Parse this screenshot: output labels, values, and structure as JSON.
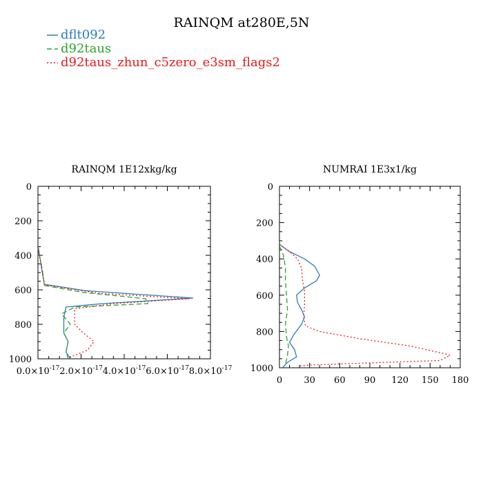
{
  "figure_title": "RAINQM at280E,5N",
  "colors": {
    "dflt092": "#2b7bb9",
    "d92taus": "#2ca02c",
    "d92taus_zhun_c5zero_e3sm_flags2": "#e31a1c"
  },
  "legend": [
    {
      "name": "dflt092",
      "color": "#2b7bb9",
      "dash": "solid"
    },
    {
      "name": "d92taus",
      "color": "#2ca02c",
      "dash": "dashed"
    },
    {
      "name": "d92taus_zhun_c5zero_e3sm_flags2",
      "color": "#e31a1c",
      "dash": "dotted"
    }
  ],
  "chart_data": [
    {
      "type": "line",
      "title": "RAINQM  1E12xkg/kg",
      "xlim": [
        0,
        8e-17
      ],
      "ylim": [
        0,
        1000
      ],
      "y_inverted": true,
      "x_ticks": [
        0,
        2e-17,
        4e-17,
        6e-17,
        8e-17
      ],
      "x_tick_labels": [
        {
          "base": "0.0×10",
          "exp": "-17"
        },
        {
          "base": "2.0×10",
          "exp": "-17"
        },
        {
          "base": "4.0×10",
          "exp": "-17"
        },
        {
          "base": "6.0×10",
          "exp": "-17"
        },
        {
          "base": "8.0×10",
          "exp": "-17"
        }
      ],
      "y_ticks": [
        0,
        200,
        400,
        600,
        800,
        1000
      ],
      "y_tick_labels": [
        "0",
        "200",
        "400",
        "600",
        "800",
        "1000"
      ],
      "series": [
        {
          "name": "dflt092",
          "color": "#2b7bb9",
          "dash": "solid",
          "points": [
            [
              0,
              340
            ],
            [
              1e-18,
              420
            ],
            [
              2e-18,
              500
            ],
            [
              3e-18,
              568
            ],
            [
              2.2e-17,
              605
            ],
            [
              7.2e-17,
              648
            ],
            [
              3e-17,
              680
            ],
            [
              1.3e-17,
              700
            ],
            [
              1.2e-17,
              760
            ],
            [
              1.2e-17,
              850
            ],
            [
              1.4e-17,
              900
            ],
            [
              1.3e-17,
              960
            ],
            [
              1.5e-17,
              1000
            ]
          ]
        },
        {
          "name": "d92taus",
          "color": "#2ca02c",
          "dash": "dashed",
          "points": [
            [
              0,
              360
            ],
            [
              2e-18,
              480
            ],
            [
              3e-18,
              575
            ],
            [
              2.1e-17,
              615
            ],
            [
              5e-17,
              652
            ],
            [
              5.1e-17,
              680
            ],
            [
              1.7e-17,
              700
            ],
            [
              1.1e-17,
              740
            ],
            [
              1.5e-17,
              800
            ],
            [
              1.2e-17,
              850
            ],
            [
              1.4e-17,
              900
            ],
            [
              1.3e-17,
              960
            ],
            [
              1.4e-17,
              1000
            ]
          ]
        },
        {
          "name": "d92taus_zhun_c5zero_e3sm_flags2",
          "color": "#e31a1c",
          "dash": "dotted",
          "points": [
            [
              0,
              350
            ],
            [
              2e-18,
              490
            ],
            [
              3e-18,
              572
            ],
            [
              2.8e-17,
              620
            ],
            [
              7e-17,
              652
            ],
            [
              3.5e-17,
              680
            ],
            [
              1.7e-17,
              710
            ],
            [
              1.7e-17,
              800
            ],
            [
              2.1e-17,
              850
            ],
            [
              2.6e-17,
              900
            ],
            [
              2.3e-17,
              950
            ],
            [
              1.8e-17,
              975
            ],
            [
              1.5e-17,
              990
            ]
          ]
        }
      ]
    },
    {
      "type": "line",
      "title": "NUMRAI  1E3x1/kg",
      "xlim": [
        0,
        180
      ],
      "ylim": [
        0,
        1000
      ],
      "y_inverted": true,
      "x_ticks": [
        0,
        30,
        60,
        90,
        120,
        150,
        180
      ],
      "x_tick_labels": [
        "0",
        "30",
        "60",
        "90",
        "120",
        "150",
        "180"
      ],
      "y_ticks": [
        0,
        200,
        400,
        600,
        800,
        1000
      ],
      "y_tick_labels": [
        "0",
        "200",
        "400",
        "600",
        "800",
        "1000"
      ],
      "series": [
        {
          "name": "dflt092",
          "color": "#2b7bb9",
          "dash": "solid",
          "points": [
            [
              0,
              320
            ],
            [
              10,
              360
            ],
            [
              25,
              400
            ],
            [
              35,
              440
            ],
            [
              40,
              490
            ],
            [
              37,
              520
            ],
            [
              25,
              560
            ],
            [
              17,
              600
            ],
            [
              18,
              640
            ],
            [
              22,
              680
            ],
            [
              25,
              720
            ],
            [
              22,
              760
            ],
            [
              14,
              820
            ],
            [
              10,
              860
            ],
            [
              15,
              900
            ],
            [
              17,
              940
            ],
            [
              8,
              970
            ],
            [
              3,
              1000
            ]
          ]
        },
        {
          "name": "d92taus",
          "color": "#2ca02c",
          "dash": "dashed",
          "points": [
            [
              0,
              330
            ],
            [
              4,
              380
            ],
            [
              6,
              450
            ],
            [
              6,
              520
            ],
            [
              7,
              600
            ],
            [
              8,
              680
            ],
            [
              6,
              760
            ],
            [
              7,
              830
            ],
            [
              9,
              880
            ],
            [
              8,
              930
            ],
            [
              6,
              980
            ]
          ]
        },
        {
          "name": "d92taus_zhun_c5zero_e3sm_flags2",
          "color": "#e31a1c",
          "dash": "dotted",
          "points": [
            [
              0,
              320
            ],
            [
              10,
              360
            ],
            [
              18,
              400
            ],
            [
              22,
              450
            ],
            [
              23,
              520
            ],
            [
              25,
              580
            ],
            [
              25,
              650
            ],
            [
              24,
              720
            ],
            [
              26,
              770
            ],
            [
              40,
              800
            ],
            [
              80,
              840
            ],
            [
              130,
              880
            ],
            [
              170,
              930
            ],
            [
              160,
              960
            ],
            [
              80,
              975
            ],
            [
              30,
              985
            ],
            [
              20,
              990
            ]
          ]
        }
      ]
    }
  ]
}
